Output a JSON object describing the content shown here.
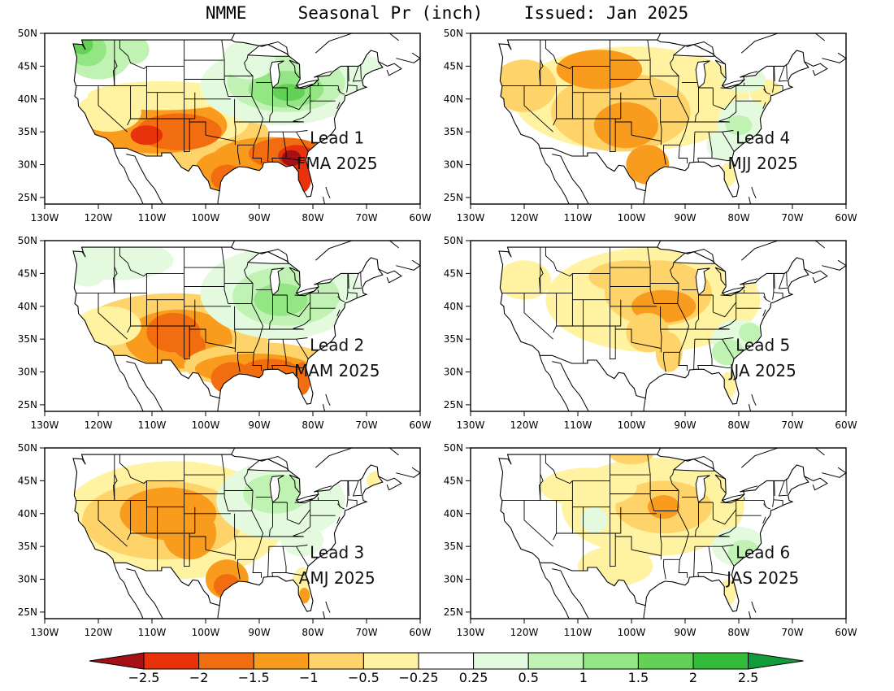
{
  "title": "NMME     Seasonal Pr (inch)    Issued: Jan 2025",
  "colors": {
    "c_m3": "#a50f15",
    "c_m25": "#e8320c",
    "c_m2": "#f26d0f",
    "c_m15": "#f99b1c",
    "c_m1": "#fdd36a",
    "c_m05": "#fff2a0",
    "c_0": "#ffffff",
    "c_p025": "#e3fadf",
    "c_p05": "#c0f2b3",
    "c_p1": "#94e684",
    "c_p15": "#62d156",
    "c_p2": "#33bb3a",
    "c_p25": "#129b3b",
    "land": "#ffffff",
    "line": "#000000"
  },
  "lat_labels": [
    "25N",
    "30N",
    "35N",
    "40N",
    "45N",
    "50N"
  ],
  "lon_labels": [
    "130W",
    "120W",
    "110W",
    "100W",
    "90W",
    "80W",
    "70W",
    "60W"
  ],
  "panels": [
    {
      "id": "lead1",
      "lead": "Lead 1",
      "season": "FMA 2025"
    },
    {
      "id": "lead4",
      "lead": "Lead 4",
      "season": "MJJ 2025"
    },
    {
      "id": "lead2",
      "lead": "Lead 2",
      "season": "MAM 2025"
    },
    {
      "id": "lead5",
      "lead": "Lead 5",
      "season": "JJA 2025"
    },
    {
      "id": "lead3",
      "lead": "Lead 3",
      "season": "AMJ 2025"
    },
    {
      "id": "lead6",
      "lead": "Lead 6",
      "season": "JAS 2025"
    }
  ],
  "colorbar": {
    "labels": [
      "−2.5",
      "−2",
      "−1.5",
      "−1",
      "−0.5",
      "−0.25",
      "0.25",
      "0.5",
      "1",
      "1.5",
      "2",
      "2.5"
    ],
    "bins": [
      "c_m3",
      "c_m25",
      "c_m2",
      "c_m15",
      "c_m1",
      "c_m05",
      "c_0",
      "c_p025",
      "c_p05",
      "c_p1",
      "c_p15",
      "c_p2",
      "c_p25"
    ]
  }
}
